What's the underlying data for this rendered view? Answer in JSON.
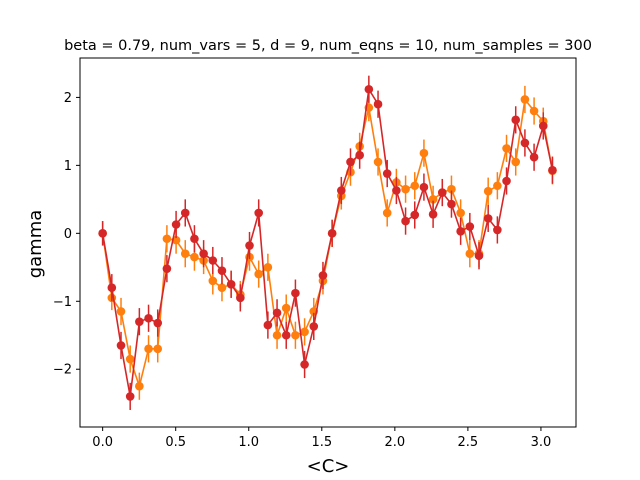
{
  "chart_data": {
    "type": "line",
    "title": "beta = 0.79, num_vars = 5, d = 9, num_eqns = 10, num_samples = 300",
    "xlabel": "<C>",
    "ylabel": "gamma",
    "xlim": [
      -0.155,
      3.24
    ],
    "ylim": [
      -2.85,
      2.58
    ],
    "xticks": [
      0.0,
      0.5,
      1.0,
      1.5,
      2.0,
      2.5,
      3.0
    ],
    "xtick_labels": [
      "0.0",
      "0.5",
      "1.0",
      "1.5",
      "2.0",
      "2.5",
      "3.0"
    ],
    "yticks": [
      -2,
      -1,
      0,
      1,
      2
    ],
    "ytick_labels": [
      "−2",
      "−1",
      "0",
      "1",
      "2"
    ],
    "grid": false,
    "series": [
      {
        "color": "#ff7f0e",
        "x": [
          0.0,
          0.0628,
          0.1257,
          0.1885,
          0.2513,
          0.3142,
          0.377,
          0.4398,
          0.5027,
          0.5655,
          0.6283,
          0.6912,
          0.754,
          0.8168,
          0.8796,
          0.9425,
          1.0053,
          1.0681,
          1.131,
          1.1938,
          1.2566,
          1.3195,
          1.3823,
          1.4451,
          1.508,
          1.5708,
          1.6336,
          1.6965,
          1.7593,
          1.8221,
          1.885,
          1.9478,
          2.0106,
          2.0735,
          2.1363,
          2.1991,
          2.2619,
          2.3248,
          2.3876,
          2.4504,
          2.5133,
          2.5761,
          2.6389,
          2.7018,
          2.7646,
          2.8274,
          2.8903,
          2.9531,
          3.0159,
          3.0788
        ],
        "y": [
          0.0,
          -0.95,
          -1.15,
          -1.85,
          -2.25,
          -1.7,
          -1.7,
          -0.08,
          -0.1,
          -0.3,
          -0.35,
          -0.4,
          -0.7,
          -0.8,
          -0.75,
          -0.9,
          -0.35,
          -0.6,
          -0.5,
          -1.5,
          -1.1,
          -1.5,
          -1.45,
          -1.15,
          -0.7,
          0.0,
          0.55,
          0.9,
          1.28,
          1.85,
          1.05,
          0.3,
          0.75,
          0.65,
          0.7,
          1.18,
          0.5,
          0.6,
          0.65,
          0.3,
          -0.3,
          -0.3,
          0.62,
          0.7,
          1.25,
          1.05,
          1.97,
          1.8,
          1.65,
          0.92
        ],
        "yerr": [
          0.18,
          0.18,
          0.2,
          0.2,
          0.2,
          0.2,
          0.2,
          0.2,
          0.2,
          0.2,
          0.2,
          0.2,
          0.2,
          0.2,
          0.2,
          0.2,
          0.2,
          0.2,
          0.2,
          0.2,
          0.2,
          0.2,
          0.2,
          0.2,
          0.2,
          0.2,
          0.2,
          0.2,
          0.2,
          0.2,
          0.2,
          0.2,
          0.2,
          0.2,
          0.2,
          0.2,
          0.2,
          0.2,
          0.2,
          0.2,
          0.2,
          0.2,
          0.2,
          0.2,
          0.2,
          0.2,
          0.2,
          0.2,
          0.2,
          0.2
        ]
      },
      {
        "color": "#d62728",
        "x": [
          0.0,
          0.0628,
          0.1257,
          0.1885,
          0.2513,
          0.3142,
          0.377,
          0.4398,
          0.5027,
          0.5655,
          0.6283,
          0.6912,
          0.754,
          0.8168,
          0.8796,
          0.9425,
          1.0053,
          1.0681,
          1.131,
          1.1938,
          1.2566,
          1.3195,
          1.3823,
          1.4451,
          1.508,
          1.5708,
          1.6336,
          1.6965,
          1.7593,
          1.8221,
          1.885,
          1.9478,
          2.0106,
          2.0735,
          2.1363,
          2.1991,
          2.2619,
          2.3248,
          2.3876,
          2.4504,
          2.5133,
          2.5761,
          2.6389,
          2.7018,
          2.7646,
          2.8274,
          2.8903,
          2.9531,
          3.0159,
          3.0788
        ],
        "y": [
          0.0,
          -0.8,
          -1.65,
          -2.4,
          -1.3,
          -1.25,
          -1.32,
          -0.52,
          0.13,
          0.3,
          -0.08,
          -0.3,
          -0.4,
          -0.55,
          -0.75,
          -0.95,
          -0.18,
          0.3,
          -1.35,
          -1.17,
          -1.5,
          -0.88,
          -1.93,
          -1.37,
          -0.62,
          0.0,
          0.63,
          1.05,
          1.15,
          2.12,
          1.9,
          0.88,
          0.63,
          0.18,
          0.27,
          0.68,
          0.28,
          0.6,
          0.43,
          0.03,
          0.1,
          -0.33,
          0.22,
          0.05,
          0.77,
          1.67,
          1.33,
          1.12,
          1.58,
          0.93
        ],
        "yerr": [
          0.18,
          0.2,
          0.2,
          0.2,
          0.2,
          0.2,
          0.2,
          0.2,
          0.2,
          0.2,
          0.2,
          0.2,
          0.2,
          0.2,
          0.2,
          0.2,
          0.2,
          0.2,
          0.2,
          0.2,
          0.2,
          0.2,
          0.2,
          0.2,
          0.2,
          0.2,
          0.2,
          0.2,
          0.2,
          0.2,
          0.2,
          0.2,
          0.2,
          0.2,
          0.2,
          0.2,
          0.2,
          0.2,
          0.2,
          0.2,
          0.2,
          0.2,
          0.2,
          0.2,
          0.2,
          0.2,
          0.2,
          0.2,
          0.2,
          0.2
        ]
      }
    ]
  }
}
